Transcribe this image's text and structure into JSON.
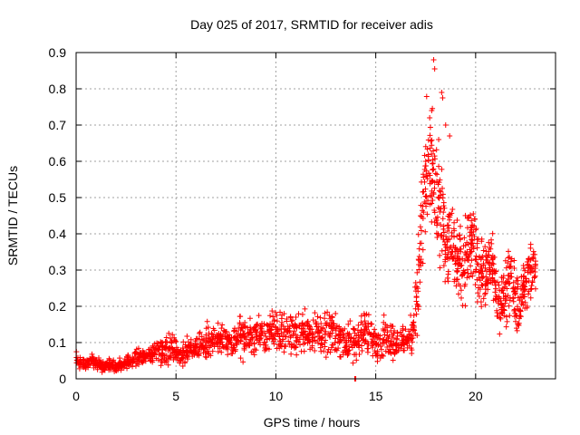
{
  "chart_data": {
    "type": "scatter",
    "title": "Day 025 of 2017, SRMTID for receiver adis",
    "xlabel": "GPS time / hours",
    "ylabel": "SRMTID / TECUs",
    "xlim": [
      0,
      24
    ],
    "ylim": [
      0,
      0.9
    ],
    "x_ticks": [
      0,
      5,
      10,
      15,
      20
    ],
    "y_ticks": [
      0,
      0.1,
      0.2,
      0.3,
      0.4,
      0.5,
      0.6,
      0.7,
      0.8,
      0.9
    ],
    "x_tick_labels": [
      "0",
      "5",
      "10",
      "15",
      "20"
    ],
    "y_tick_labels": [
      "0",
      "0.1",
      "0.2",
      "0.3",
      "0.4",
      "0.5",
      "0.6",
      "0.7",
      "0.8",
      "0.9"
    ],
    "grid": true,
    "marker": "+",
    "color": "#ff0000",
    "series": [
      {
        "name": "SRMTID",
        "x": [
          0.0,
          0.2,
          0.4,
          0.6,
          0.8,
          1.0,
          1.2,
          1.4,
          1.6,
          1.8,
          2.0,
          2.2,
          2.4,
          2.6,
          2.8,
          3.0,
          3.2,
          3.4,
          3.6,
          3.8,
          4.0,
          4.2,
          4.4,
          4.6,
          4.8,
          5.0,
          5.2,
          5.4,
          5.6,
          5.8,
          6.0,
          6.2,
          6.4,
          6.6,
          6.8,
          7.0,
          7.2,
          7.4,
          7.6,
          7.8,
          8.0,
          8.2,
          8.4,
          8.6,
          8.8,
          9.0,
          9.2,
          9.4,
          9.6,
          9.8,
          10.0,
          10.2,
          10.4,
          10.6,
          10.8,
          11.0,
          11.2,
          11.4,
          11.6,
          11.8,
          12.0,
          12.2,
          12.4,
          12.6,
          12.8,
          13.0,
          13.2,
          13.4,
          13.6,
          13.8,
          14.0,
          14.2,
          14.4,
          14.6,
          14.8,
          15.0,
          15.2,
          15.4,
          15.6,
          15.8,
          16.0,
          16.2,
          16.4,
          16.6,
          16.8,
          17.0,
          17.2,
          17.4,
          17.6,
          17.8,
          18.0,
          18.2,
          18.4,
          18.6,
          18.8,
          19.0,
          19.2,
          19.4,
          19.6,
          19.8,
          20.0,
          20.2,
          20.4,
          20.6,
          20.8,
          21.0,
          21.2,
          21.4,
          21.6,
          21.8,
          22.0,
          22.2,
          22.4,
          22.6,
          22.8
        ],
        "y_center": [
          0.055,
          0.045,
          0.04,
          0.045,
          0.05,
          0.045,
          0.04,
          0.04,
          0.038,
          0.04,
          0.035,
          0.04,
          0.04,
          0.045,
          0.05,
          0.055,
          0.06,
          0.065,
          0.065,
          0.07,
          0.075,
          0.08,
          0.08,
          0.09,
          0.085,
          0.075,
          0.07,
          0.075,
          0.08,
          0.085,
          0.09,
          0.095,
          0.1,
          0.1,
          0.1,
          0.105,
          0.11,
          0.1,
          0.095,
          0.1,
          0.11,
          0.12,
          0.115,
          0.11,
          0.115,
          0.12,
          0.12,
          0.115,
          0.12,
          0.13,
          0.13,
          0.125,
          0.13,
          0.125,
          0.12,
          0.125,
          0.13,
          0.135,
          0.13,
          0.125,
          0.13,
          0.125,
          0.115,
          0.12,
          0.13,
          0.12,
          0.12,
          0.11,
          0.1,
          0.09,
          0.1,
          0.12,
          0.13,
          0.12,
          0.12,
          0.11,
          0.1,
          0.11,
          0.12,
          0.11,
          0.1,
          0.1,
          0.11,
          0.11,
          0.12,
          0.2,
          0.32,
          0.48,
          0.58,
          0.55,
          0.5,
          0.45,
          0.42,
          0.38,
          0.35,
          0.33,
          0.3,
          0.32,
          0.36,
          0.4,
          0.35,
          0.3,
          0.28,
          0.3,
          0.32,
          0.25,
          0.2,
          0.22,
          0.25,
          0.28,
          0.22,
          0.2,
          0.25,
          0.28,
          0.3
        ],
        "y_spread": [
          0.015,
          0.015,
          0.015,
          0.015,
          0.015,
          0.015,
          0.015,
          0.015,
          0.015,
          0.015,
          0.015,
          0.015,
          0.015,
          0.015,
          0.015,
          0.02,
          0.02,
          0.02,
          0.02,
          0.025,
          0.03,
          0.03,
          0.03,
          0.04,
          0.04,
          0.03,
          0.03,
          0.03,
          0.03,
          0.03,
          0.035,
          0.035,
          0.04,
          0.04,
          0.04,
          0.04,
          0.04,
          0.04,
          0.035,
          0.04,
          0.04,
          0.05,
          0.05,
          0.04,
          0.04,
          0.04,
          0.04,
          0.04,
          0.045,
          0.05,
          0.05,
          0.05,
          0.05,
          0.05,
          0.05,
          0.05,
          0.05,
          0.05,
          0.05,
          0.05,
          0.05,
          0.05,
          0.05,
          0.05,
          0.05,
          0.05,
          0.05,
          0.045,
          0.05,
          0.05,
          0.05,
          0.05,
          0.05,
          0.05,
          0.05,
          0.045,
          0.045,
          0.045,
          0.05,
          0.045,
          0.04,
          0.04,
          0.04,
          0.04,
          0.05,
          0.08,
          0.12,
          0.18,
          0.15,
          0.15,
          0.14,
          0.12,
          0.12,
          0.11,
          0.1,
          0.1,
          0.09,
          0.09,
          0.1,
          0.1,
          0.1,
          0.09,
          0.08,
          0.08,
          0.08,
          0.07,
          0.07,
          0.07,
          0.08,
          0.08,
          0.07,
          0.07,
          0.07,
          0.08,
          0.08
        ]
      }
    ],
    "outliers": [
      {
        "x": 17.9,
        "y": 0.88
      },
      {
        "x": 17.95,
        "y": 0.855
      },
      {
        "x": 18.3,
        "y": 0.79
      },
      {
        "x": 18.35,
        "y": 0.775
      },
      {
        "x": 18.5,
        "y": 0.7
      },
      {
        "x": 17.8,
        "y": 0.74
      },
      {
        "x": 17.7,
        "y": 0.72
      },
      {
        "x": 18.15,
        "y": 0.66
      },
      {
        "x": 18.7,
        "y": 0.67
      },
      {
        "x": 17.5,
        "y": 0.6
      },
      {
        "x": 13.95,
        "y": 0.0
      },
      {
        "x": 14.0,
        "y": 0.0
      }
    ]
  }
}
